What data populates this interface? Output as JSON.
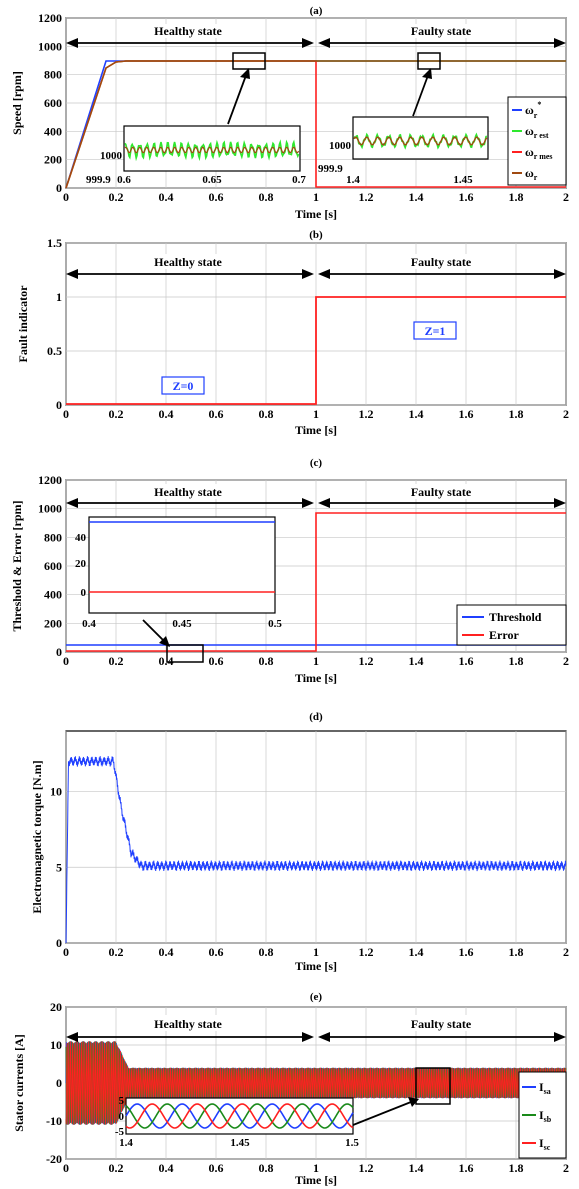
{
  "colors": {
    "blue": "#1f3fff",
    "green": "#2ee82e",
    "red": "#ff2020",
    "brown": "#a04a10",
    "darkgreen": "#1a8a1a",
    "black": "#000000"
  },
  "chart_data": [
    {
      "type": "line",
      "panel": "(a)",
      "xlabel": "Time [s]",
      "ylabel": "Speed [rpm]",
      "xlim": [
        0,
        2
      ],
      "ylim": [
        0,
        1200
      ],
      "xticks": [
        0,
        0.2,
        0.4,
        0.6,
        0.8,
        1,
        1.2,
        1.4,
        1.6,
        1.8,
        2
      ],
      "yticks": [
        0,
        200,
        400,
        600,
        800,
        1000,
        1200
      ],
      "grid": true,
      "state_labels": [
        "Healthy state",
        "Faulty state"
      ],
      "legend": {
        "position": "right",
        "entries": [
          "ω_r^*",
          "ω_r est",
          "ω_r mes",
          "ω_r"
        ]
      },
      "series": [
        {
          "name": "ω_r^*",
          "color": "blue",
          "x": [
            0,
            0.2,
            0.25,
            2
          ],
          "y": [
            0,
            1000,
            1000,
            1000
          ]
        },
        {
          "name": "ω_r est",
          "color": "green",
          "x": [
            0,
            0.2,
            0.25,
            0.3,
            2
          ],
          "y": [
            0,
            950,
            995,
            1000,
            1000
          ]
        },
        {
          "name": "ω_r mes",
          "color": "red",
          "x": [
            0,
            0.2,
            0.25,
            0.3,
            1,
            1,
            2
          ],
          "y": [
            0,
            950,
            995,
            1000,
            1000,
            0,
            0
          ]
        },
        {
          "name": "ω_r",
          "color": "brown",
          "x": [
            0,
            0.2,
            0.25,
            0.3,
            2
          ],
          "y": [
            0,
            950,
            995,
            1000,
            1000
          ]
        }
      ],
      "insets": [
        {
          "xlim": [
            0.6,
            0.7
          ],
          "ylim": [
            999.9,
            1000.1
          ],
          "xticks": [
            0.6,
            0.65,
            0.7
          ],
          "yticks": [
            999.9,
            1000
          ]
        },
        {
          "xlim": [
            1.4,
            1.45
          ],
          "ylim": [
            999.9,
            1000.1
          ],
          "xticks": [
            1.4,
            1.45
          ],
          "yticks": [
            999.9,
            1000
          ]
        }
      ]
    },
    {
      "type": "line",
      "panel": "(b)",
      "xlabel": "Time [s]",
      "ylabel": "Fault indicator",
      "xlim": [
        0,
        2
      ],
      "ylim": [
        0,
        1.5
      ],
      "xticks": [
        0,
        0.2,
        0.4,
        0.6,
        0.8,
        1,
        1.2,
        1.4,
        1.6,
        1.8,
        2
      ],
      "yticks": [
        0,
        0.5,
        1,
        1.5
      ],
      "grid": true,
      "state_labels": [
        "Healthy state",
        "Faulty state"
      ],
      "annotations": [
        "Z=0",
        "Z=1"
      ],
      "series": [
        {
          "color": "red",
          "x": [
            0,
            1,
            1,
            2
          ],
          "y": [
            0,
            0,
            1,
            1
          ]
        }
      ]
    },
    {
      "type": "line",
      "panel": "(c)",
      "xlabel": "Time [s]",
      "ylabel": "Threshold & Error [rpm]",
      "xlim": [
        0,
        2
      ],
      "ylim": [
        0,
        1200
      ],
      "xticks": [
        0,
        0.2,
        0.4,
        0.6,
        0.8,
        1,
        1.2,
        1.4,
        1.6,
        1.8,
        2
      ],
      "yticks": [
        0,
        200,
        400,
        600,
        800,
        1000,
        1200
      ],
      "grid": true,
      "state_labels": [
        "Healthy state",
        "Faulty state"
      ],
      "legend": {
        "position": "right",
        "entries": [
          "Threshold",
          "Error"
        ]
      },
      "series": [
        {
          "name": "Threshold",
          "color": "blue",
          "x": [
            0,
            2
          ],
          "y": [
            45,
            45
          ]
        },
        {
          "name": "Error",
          "color": "red",
          "x": [
            0,
            1,
            1,
            2
          ],
          "y": [
            0,
            0,
            1000,
            1000
          ]
        }
      ],
      "insets": [
        {
          "xlim": [
            0.4,
            0.5
          ],
          "ylim": [
            -10,
            50
          ],
          "xticks": [
            0.4,
            0.45,
            0.5
          ],
          "yticks": [
            0,
            20,
            40
          ]
        }
      ]
    },
    {
      "type": "line",
      "panel": "(d)",
      "xlabel": "Time [s]",
      "ylabel": "Electromagnetic torque [N.m]",
      "xlim": [
        0,
        2
      ],
      "ylim": [
        0,
        14
      ],
      "xticks": [
        0,
        0.2,
        0.4,
        0.6,
        0.8,
        1,
        1.2,
        1.4,
        1.6,
        1.8,
        2
      ],
      "yticks": [
        0,
        5,
        10
      ],
      "grid": true,
      "series": [
        {
          "color": "blue",
          "x": [
            0,
            0.01,
            0.19,
            0.22,
            0.26,
            0.3,
            2
          ],
          "y": [
            0,
            12,
            12,
            9,
            6,
            5.1,
            5.1
          ]
        }
      ]
    },
    {
      "type": "line",
      "panel": "(e)",
      "xlabel": "Time [s]",
      "ylabel": "Stator currents [A]",
      "xlim": [
        0,
        2
      ],
      "ylim": [
        -20,
        20
      ],
      "xticks": [
        0,
        0.2,
        0.4,
        0.6,
        0.8,
        1,
        1.2,
        1.4,
        1.6,
        1.8,
        2
      ],
      "yticks": [
        -20,
        -10,
        0,
        10,
        20
      ],
      "grid": true,
      "state_labels": [
        "Healthy state",
        "Faulty state"
      ],
      "legend": {
        "position": "right",
        "entries": [
          "I_sa",
          "I_sb",
          "I_sc"
        ]
      },
      "series": [
        {
          "name": "I_sa",
          "color": "blue",
          "amplitude_start": 11,
          "amplitude_steady": 4
        },
        {
          "name": "I_sb",
          "color": "darkgreen",
          "amplitude_start": 11,
          "amplitude_steady": 4
        },
        {
          "name": "I_sc",
          "color": "red",
          "amplitude_start": 11,
          "amplitude_steady": 4
        }
      ],
      "insets": [
        {
          "xlim": [
            1.4,
            1.5
          ],
          "ylim": [
            -5,
            5
          ],
          "xticks": [
            1.4,
            1.45,
            1.5
          ],
          "yticks": [
            -5,
            0,
            5
          ]
        }
      ]
    }
  ]
}
